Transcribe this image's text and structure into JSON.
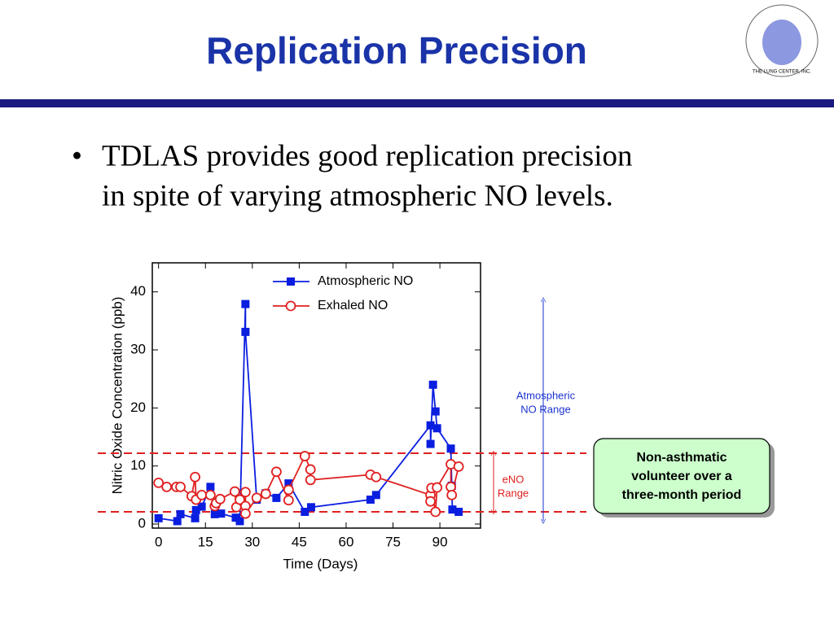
{
  "slide": {
    "title": "Replication Precision",
    "bullet": [
      "TDLAS provides good replication precision",
      "in spite of varying atmospheric NO levels."
    ],
    "callout": [
      "Non-asthmatic",
      "volunteer over a",
      "three-month period"
    ],
    "logo_text": "THE LUNG CENTER, INC."
  },
  "chart_data": {
    "type": "scatter",
    "xlabel": "Time (Days)",
    "ylabel": "Nitric Oxide Concentration (ppb)",
    "xlim": [
      -2,
      103
    ],
    "xticks": [
      0,
      15,
      30,
      45,
      60,
      75,
      90
    ],
    "ylim": [
      -0.7,
      45
    ],
    "yticks": [
      0,
      10,
      20,
      30,
      40
    ],
    "reference_lines": [
      12.2,
      2.1
    ],
    "reference_color": "#e02020",
    "annotations": [
      {
        "text": [
          "Atmospheric",
          "NO Range"
        ],
        "range": [
          0.5,
          38.6
        ],
        "color": "#1a33d0"
      },
      {
        "text": [
          "eNO",
          "Range"
        ],
        "range": [
          2.1,
          12.2
        ],
        "color": "#e02020"
      }
    ],
    "series": [
      {
        "name": "Atmospheric NO",
        "color": "#0a1ee0",
        "marker": "square",
        "x": [
          0,
          6,
          7,
          11.7,
          12,
          13.8,
          16.6,
          18,
          20,
          24.7,
          26,
          27.8,
          27.8,
          31.4,
          34.3,
          37.7,
          41.6,
          46.8,
          48.8,
          67.8,
          69.6,
          87,
          87,
          87.8,
          88.6,
          89.1,
          93.5,
          93.8,
          94,
          96
        ],
        "values": [
          1,
          0.5,
          1.7,
          1,
          2.4,
          3,
          6.4,
          1.7,
          1.8,
          1.1,
          0.5,
          37.9,
          33.1,
          4.2,
          5.3,
          4.5,
          7,
          2.1,
          2.9,
          4.2,
          5,
          17,
          13.8,
          24,
          19.4,
          16.5,
          13,
          6.6,
          2.5,
          2.1
        ]
      },
      {
        "name": "Exhaled NO",
        "color": "#e02020",
        "marker": "circle",
        "x": [
          0,
          2.6,
          5.7,
          7,
          10.6,
          11.7,
          12,
          13.8,
          16.6,
          18,
          18.4,
          19.7,
          24.4,
          24.9,
          26,
          27.8,
          27.8,
          27.8,
          31.4,
          34.3,
          37.7,
          41.6,
          41.6,
          46.8,
          48.6,
          48.6,
          67.8,
          69.6,
          87,
          87,
          87.3,
          88.6,
          89.1,
          93.5,
          93.5,
          93.8,
          96
        ],
        "values": [
          7.1,
          6.4,
          6.4,
          6.4,
          4.8,
          8.1,
          4.2,
          5,
          5,
          3.1,
          3.6,
          4.3,
          5.6,
          2.9,
          4.2,
          5.5,
          3.1,
          1.8,
          4.5,
          5.2,
          9,
          4.1,
          5.9,
          11.7,
          9.4,
          7.6,
          8.5,
          8.1,
          5,
          3.9,
          6.2,
          2.1,
          6.3,
          10.3,
          6.4,
          5,
          9.9
        ]
      }
    ]
  }
}
